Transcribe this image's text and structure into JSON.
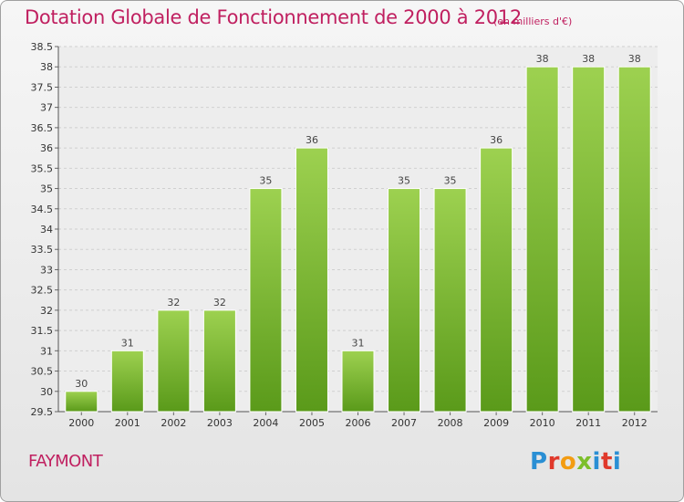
{
  "header": {
    "title": "Dotation Globale de Fonctionnement de 2000 à 2012",
    "subtitle": "(en milliers d'€)"
  },
  "footer": {
    "place": "FAYMONT",
    "logo_letters": [
      "P",
      "r",
      "o",
      "x",
      "i",
      "t",
      "i"
    ]
  },
  "colors": {
    "accent": "#c02060",
    "bar_top": "#9dd150",
    "bar_bottom": "#5a9a1a",
    "grid": "#d0d0d0"
  },
  "chart_data": {
    "type": "bar",
    "title": "Dotation Globale de Fonctionnement de 2000 à 2012",
    "subtitle": "(en milliers d'€)",
    "xlabel": "",
    "ylabel": "",
    "categories": [
      "2000",
      "2001",
      "2002",
      "2003",
      "2004",
      "2005",
      "2006",
      "2007",
      "2008",
      "2009",
      "2010",
      "2011",
      "2012"
    ],
    "values": [
      30,
      31,
      32,
      32,
      35,
      36,
      31,
      35,
      35,
      36,
      38,
      38,
      38
    ],
    "ylim": [
      29.5,
      38.5
    ],
    "yticks": [
      "29.5",
      "30",
      "30.5",
      "31",
      "31.5",
      "32",
      "32.5",
      "33",
      "33.5",
      "34",
      "34.5",
      "35",
      "35.5",
      "36",
      "36.5",
      "37",
      "37.5",
      "38",
      "38.5"
    ],
    "grid": true,
    "legend": "none"
  }
}
